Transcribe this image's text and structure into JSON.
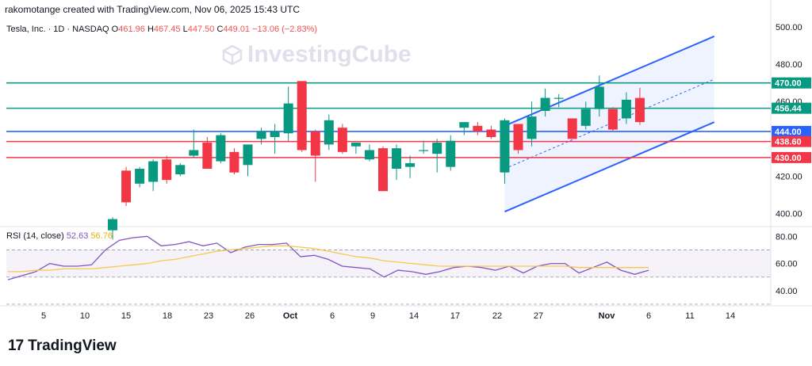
{
  "header": {
    "author_line": "rakomotange created with TradingView.com, Nov 06, 2025 15:43 UTC"
  },
  "symbol": {
    "name": "Tesla, Inc. · 1D · NASDAQ",
    "o_label": "O",
    "o": "461.96",
    "h_label": "H",
    "h": "467.45",
    "l_label": "L",
    "l": "447.50",
    "c_label": "C",
    "c": "449.01",
    "change": "−13.06 (−2.83%)"
  },
  "watermark": {
    "text": "InvestingCube"
  },
  "logo": {
    "mark": "17",
    "text": "TradingView"
  },
  "colors": {
    "up": "#089981",
    "down": "#f23645",
    "channel": "#2962ff",
    "rsi": "#7e57c2",
    "rsi_ma": "#f9c74f",
    "green_level": "#089981",
    "blue_level": "#2962ff",
    "red_level": "#f23645"
  },
  "rsi_legend": {
    "label": "RSI (14, close)",
    "rsi": "52.63",
    "ma": "56.76"
  },
  "chart_data": [
    {
      "type": "candlestick",
      "title": "Tesla, Inc. · 1D · NASDAQ",
      "ylim": [
        393,
        503
      ],
      "y_ticks": [
        "400.00",
        "420.00",
        "440.00",
        "460.00",
        "480.00",
        "500.00"
      ],
      "x_ticks": [
        "5",
        "10",
        "15",
        "18",
        "23",
        "26",
        "Oct",
        "6",
        "9",
        "14",
        "17",
        "22",
        "27",
        "Nov",
        "6",
        "11",
        "14"
      ],
      "candles": [
        {
          "o": 391,
          "h": 398,
          "l": 386,
          "c": 397
        },
        {
          "o": 423,
          "h": 425,
          "l": 404,
          "c": 406
        },
        {
          "o": 416,
          "h": 425,
          "l": 414,
          "c": 424
        },
        {
          "o": 417,
          "h": 429,
          "l": 412,
          "c": 428
        },
        {
          "o": 429,
          "h": 431,
          "l": 416,
          "c": 418
        },
        {
          "o": 421,
          "h": 427,
          "l": 420,
          "c": 426
        },
        {
          "o": 431,
          "h": 445,
          "l": 430,
          "c": 434
        },
        {
          "o": 438,
          "h": 441,
          "l": 424,
          "c": 424
        },
        {
          "o": 428,
          "h": 443,
          "l": 427,
          "c": 442
        },
        {
          "o": 433,
          "h": 435,
          "l": 421,
          "c": 422
        },
        {
          "o": 426,
          "h": 436,
          "l": 420,
          "c": 437
        },
        {
          "o": 440,
          "h": 446,
          "l": 437,
          "c": 444
        },
        {
          "o": 441,
          "h": 448,
          "l": 432,
          "c": 444
        },
        {
          "o": 443,
          "h": 468,
          "l": 439,
          "c": 459
        },
        {
          "o": 471,
          "h": 471,
          "l": 433,
          "c": 434
        },
        {
          "o": 444,
          "h": 445,
          "l": 417,
          "c": 431
        },
        {
          "o": 437,
          "h": 453,
          "l": 434,
          "c": 450
        },
        {
          "o": 446,
          "h": 448,
          "l": 432,
          "c": 433
        },
        {
          "o": 436,
          "h": 438,
          "l": 432,
          "c": 438
        },
        {
          "o": 429,
          "h": 437,
          "l": 428,
          "c": 434
        },
        {
          "o": 435,
          "h": 436,
          "l": 413,
          "c": 412
        },
        {
          "o": 424,
          "h": 437,
          "l": 418,
          "c": 435
        },
        {
          "o": 425,
          "h": 431,
          "l": 419,
          "c": 427
        },
        {
          "o": 434,
          "h": 439,
          "l": 432,
          "c": 434
        },
        {
          "o": 432,
          "h": 440,
          "l": 422,
          "c": 438
        },
        {
          "o": 425,
          "h": 442,
          "l": 423,
          "c": 439
        },
        {
          "o": 446,
          "h": 449,
          "l": 442,
          "c": 449
        },
        {
          "o": 447,
          "h": 449,
          "l": 442,
          "c": 444
        },
        {
          "o": 445,
          "h": 447,
          "l": 440,
          "c": 441
        },
        {
          "o": 422,
          "h": 451,
          "l": 416,
          "c": 450
        },
        {
          "o": 448,
          "h": 448,
          "l": 432,
          "c": 434
        },
        {
          "o": 440,
          "h": 460,
          "l": 436,
          "c": 452
        },
        {
          "o": 455,
          "h": 467,
          "l": 452,
          "c": 462
        },
        {
          "o": 462,
          "h": 464,
          "l": 457,
          "c": 462
        },
        {
          "o": 451,
          "h": 451,
          "l": 440,
          "c": 440
        },
        {
          "o": 447,
          "h": 460,
          "l": 445,
          "c": 456
        },
        {
          "o": 456,
          "h": 474,
          "l": 452,
          "c": 468
        },
        {
          "o": 456,
          "h": 457,
          "l": 444,
          "c": 445
        },
        {
          "o": 451,
          "h": 465,
          "l": 448,
          "c": 461
        },
        {
          "o": 461.96,
          "h": 467.45,
          "l": 447.5,
          "c": 449.01
        }
      ],
      "levels": [
        {
          "label": "470.00",
          "value": 470.0,
          "color": "#089981"
        },
        {
          "label": "456.44",
          "value": 456.44,
          "color": "#089981"
        },
        {
          "label": "444.00",
          "value": 444.0,
          "color": "#2962ff"
        },
        {
          "label": "438.60",
          "value": 438.6,
          "color": "#f23645"
        },
        {
          "label": "430.00",
          "value": 430.0,
          "color": "#f23645"
        }
      ],
      "channel": {
        "lower": [
          [
            29,
            401
          ],
          [
            44.5,
            449
          ]
        ],
        "upper": [
          [
            29,
            447
          ],
          [
            44.5,
            495
          ]
        ],
        "mid": [
          [
            29,
            424
          ],
          [
            44.5,
            472
          ]
        ]
      }
    },
    {
      "type": "line",
      "title": "RSI (14, close)",
      "ylim": [
        30,
        86
      ],
      "y_ticks": [
        "40.00",
        "60.00",
        "80.00"
      ],
      "band": [
        50,
        70
      ],
      "series": [
        {
          "name": "RSI",
          "values": [
            48,
            51,
            54,
            60,
            58,
            58,
            59,
            70,
            77,
            79,
            80,
            73,
            74,
            76,
            73,
            75,
            68,
            72,
            74,
            74,
            75,
            65,
            66,
            63,
            58,
            57,
            56,
            50,
            55,
            54,
            52,
            54,
            57,
            58,
            57,
            55,
            58,
            53,
            58,
            60,
            60,
            53,
            57,
            61,
            55,
            52,
            55
          ]
        },
        {
          "name": "MA",
          "values": [
            54,
            54,
            55,
            55,
            56,
            56,
            56,
            57,
            58,
            59,
            60,
            62,
            63,
            65,
            67,
            69,
            70,
            71,
            72,
            73,
            73,
            72,
            71,
            69,
            67,
            65,
            64,
            62,
            61,
            60,
            59,
            58,
            58,
            58,
            58,
            58,
            58,
            58,
            58,
            58,
            58,
            57,
            57,
            57,
            57,
            57,
            57
          ]
        }
      ]
    }
  ]
}
